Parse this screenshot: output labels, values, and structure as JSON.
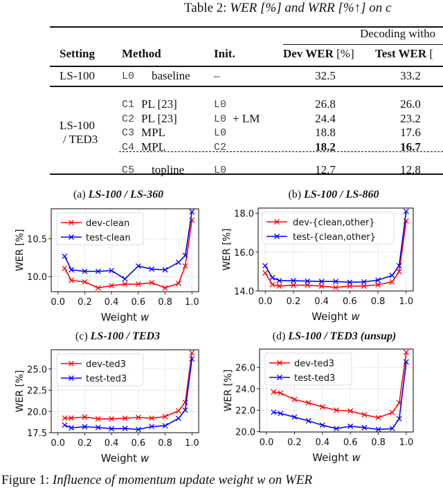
{
  "table": {
    "caption_prefix": "Table 2:",
    "caption_italic": "WER [%] and WRR [%↑] on c",
    "group_header": "Decoding witho",
    "headers": {
      "setting": "Setting",
      "method": "Method",
      "init": "Init.",
      "dev_bold": "Dev WER",
      "dev_unit": "[%]",
      "test_bold": "Test WER",
      "test_unit": "["
    },
    "rows": [
      {
        "setting": "LS-100",
        "code": "L0",
        "method": "baseline",
        "init": "–",
        "init_extra": "",
        "dev": "32.5",
        "test": "33.2"
      },
      {
        "setting": "",
        "code": "C1",
        "method": "PL [23]",
        "init": "L0",
        "init_extra": "",
        "dev": "26.8",
        "test": "26.0"
      },
      {
        "setting": "",
        "code": "C2",
        "method": "PL [23]",
        "init": "L0",
        "init_extra": "+ LM",
        "dev": "24.4",
        "test": "23.2"
      },
      {
        "setting": "",
        "code": "C3",
        "method": "MPL",
        "init": "L0",
        "init_extra": "",
        "dev": "18.8",
        "test": "17.6"
      },
      {
        "setting": "",
        "code": "C4",
        "method": "MPL",
        "init": "C2",
        "init_extra": "",
        "dev": "18.2",
        "test": "16.7"
      },
      {
        "setting": "",
        "code": "C5",
        "method": "topline",
        "init": "L0",
        "init_extra": "",
        "dev": "12.7",
        "test": "12.8"
      }
    ],
    "group_setting_line1": "LS-100",
    "group_setting_line2": "/ TED3"
  },
  "figure_caption": {
    "prefix": "Figure 1:",
    "italic": "Influence of momentum update weight w on WER"
  },
  "chart_data": [
    {
      "type": "line",
      "label": "(a)",
      "title": "LS-100 / LS-360",
      "xlabel": "Weight",
      "xlabel_var": "w",
      "ylabel": "WER [%]",
      "xlim": [
        -0.05,
        1.05
      ],
      "ylim": [
        9.8,
        10.9
      ],
      "xticks": [
        "0.0",
        "0.2",
        "0.4",
        "0.6",
        "0.8",
        "1.0"
      ],
      "yticks": [
        "10.0",
        "10.5"
      ],
      "grid": true,
      "legend": "top-left",
      "x": [
        0.05,
        0.1,
        0.2,
        0.3,
        0.4,
        0.5,
        0.6,
        0.7,
        0.8,
        0.9,
        0.95,
        1.0
      ],
      "series": [
        {
          "name": "dev-clean",
          "color": "#ff0000",
          "values": [
            10.11,
            9.95,
            9.93,
            9.85,
            9.88,
            9.9,
            9.9,
            9.92,
            9.85,
            9.91,
            10.14,
            10.75
          ]
        },
        {
          "name": "test-clean",
          "color": "#0000ff",
          "values": [
            10.27,
            10.09,
            10.07,
            10.07,
            10.08,
            9.97,
            10.14,
            10.1,
            10.09,
            10.19,
            10.28,
            10.86
          ]
        }
      ]
    },
    {
      "type": "line",
      "label": "(b)",
      "title": "LS-100 / LS-860",
      "xlabel": "Weight",
      "xlabel_var": "w",
      "ylabel": "WER [%]",
      "xlim": [
        -0.05,
        1.05
      ],
      "ylim": [
        14.0,
        18.27
      ],
      "xticks": [
        "0.0",
        "0.2",
        "0.4",
        "0.6",
        "0.8",
        "1.0"
      ],
      "yticks": [
        "14.0",
        "16.0",
        "18.0"
      ],
      "grid": true,
      "legend": "top-right",
      "x": [
        0.0,
        0.05,
        0.1,
        0.2,
        0.3,
        0.4,
        0.5,
        0.6,
        0.7,
        0.8,
        0.9,
        0.95,
        1.0
      ],
      "series": [
        {
          "name": "dev-{clean,other}",
          "color": "#ff0000",
          "values": [
            14.93,
            14.33,
            14.25,
            14.3,
            14.3,
            14.25,
            14.18,
            14.25,
            14.25,
            14.32,
            14.47,
            15.0,
            17.6
          ]
        },
        {
          "name": "test-{clean,other}",
          "color": "#0000ff",
          "values": [
            15.3,
            14.69,
            14.53,
            14.53,
            14.51,
            14.49,
            14.49,
            14.45,
            14.47,
            14.56,
            14.8,
            15.3,
            18.1
          ]
        }
      ]
    },
    {
      "type": "line",
      "label": "(c)",
      "title": "LS-100 / TED3",
      "xlabel": "Weight",
      "xlabel_var": "w",
      "ylabel": "WER [%]",
      "xlim": [
        -0.05,
        1.05
      ],
      "ylim": [
        17.5,
        27.26
      ],
      "xticks": [
        "0.0",
        "0.2",
        "0.4",
        "0.6",
        "0.8",
        "1.0"
      ],
      "yticks": [
        "17.5",
        "20.0",
        "22.5",
        "25.0"
      ],
      "grid": true,
      "legend": "top-left",
      "x": [
        0.05,
        0.1,
        0.2,
        0.3,
        0.4,
        0.5,
        0.6,
        0.7,
        0.8,
        0.9,
        0.95,
        1.0
      ],
      "series": [
        {
          "name": "dev-ted3",
          "color": "#ff0000",
          "values": [
            19.22,
            19.22,
            19.35,
            19.13,
            19.13,
            19.2,
            19.3,
            19.2,
            19.4,
            20.08,
            21.06,
            26.9
          ]
        },
        {
          "name": "test-ted3",
          "color": "#0000ff",
          "values": [
            18.4,
            18.07,
            18.2,
            18.12,
            17.96,
            18.0,
            17.88,
            18.23,
            18.32,
            19.18,
            20.16,
            26.2
          ]
        }
      ]
    },
    {
      "type": "line",
      "label": "(d)",
      "title": "LS-100 / TED3 (unsup)",
      "xlabel": "Weight",
      "xlabel_var": "w",
      "ylabel": "WER [%]",
      "xlim": [
        -0.05,
        1.05
      ],
      "ylim": [
        19.96,
        27.7
      ],
      "xticks": [
        "0.0",
        "0.2",
        "0.4",
        "0.6",
        "0.8",
        "1.0"
      ],
      "yticks": [
        "20.0",
        "22.0",
        "24.0",
        "26.0"
      ],
      "grid": true,
      "legend": "top-left",
      "x": [
        0.05,
        0.1,
        0.2,
        0.3,
        0.4,
        0.5,
        0.6,
        0.7,
        0.8,
        0.9,
        0.95,
        1.0
      ],
      "series": [
        {
          "name": "dev-ted3",
          "color": "#ff0000",
          "values": [
            23.7,
            23.6,
            23.0,
            22.68,
            22.3,
            22.0,
            21.92,
            21.57,
            21.3,
            21.78,
            22.68,
            27.4
          ]
        },
        {
          "name": "test-ted3",
          "color": "#0000ff",
          "values": [
            21.8,
            21.7,
            21.35,
            21.0,
            20.6,
            20.28,
            20.5,
            20.37,
            20.2,
            20.28,
            21.2,
            26.5
          ]
        }
      ]
    }
  ]
}
